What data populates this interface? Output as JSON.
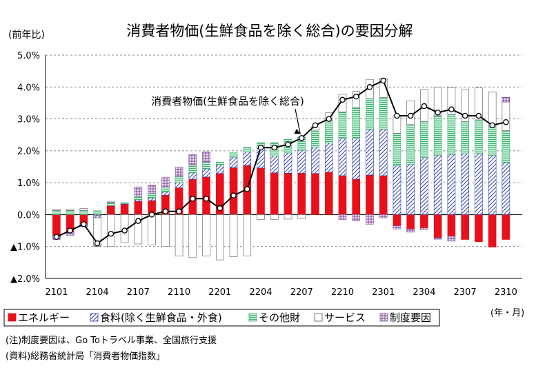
{
  "chart_data": {
    "type": "bar",
    "title": "消費者物価(生鮮食品を除く総合)の要因分解",
    "ylabel": "(前年比)",
    "xlabel": "(年・月)",
    "ylim": [
      -2.0,
      5.0
    ],
    "ytick_labels": [
      "5.0%",
      "4.0%",
      "3.0%",
      "2.0%",
      "1.0%",
      "0.0%",
      "▲1.0%",
      "▲2.0%"
    ],
    "ytick_values": [
      5.0,
      4.0,
      3.0,
      2.0,
      1.0,
      0.0,
      -1.0,
      -2.0
    ],
    "grid": true,
    "stacked": true,
    "categories": [
      "2101",
      "2102",
      "2103",
      "2104",
      "2105",
      "2106",
      "2107",
      "2108",
      "2109",
      "2110",
      "2111",
      "2112",
      "2201",
      "2202",
      "2203",
      "2204",
      "2205",
      "2206",
      "2207",
      "2208",
      "2209",
      "2210",
      "2211",
      "2212",
      "2301",
      "2302",
      "2303",
      "2304",
      "2305",
      "2306",
      "2307",
      "2308",
      "2309",
      "2310"
    ],
    "xtick_labels": [
      "2101",
      "2104",
      "2107",
      "2110",
      "2201",
      "2204",
      "2207",
      "2210",
      "2301",
      "2304",
      "2307",
      "2310"
    ],
    "series": [
      {
        "name": "エネルギー",
        "color": "#e8101a",
        "values": [
          -0.65,
          -0.55,
          -0.3,
          -0.02,
          0.28,
          0.33,
          0.42,
          0.44,
          0.61,
          0.84,
          1.11,
          1.18,
          1.29,
          1.47,
          1.54,
          1.46,
          1.31,
          1.3,
          1.3,
          1.29,
          1.33,
          1.22,
          1.11,
          1.24,
          1.22,
          -0.35,
          -0.45,
          -0.42,
          -0.72,
          -0.68,
          -0.78,
          -0.85,
          -1.02,
          -0.78
        ]
      },
      {
        "name": "食料(除く生鮮食品・外食)",
        "color": "#2d3bb2",
        "values": [
          -0.05,
          -0.04,
          -0.03,
          -0.08,
          0.0,
          0.02,
          0.05,
          0.08,
          0.1,
          0.15,
          0.2,
          0.25,
          0.26,
          0.33,
          0.42,
          0.64,
          0.53,
          0.63,
          0.72,
          0.82,
          0.91,
          1.16,
          1.27,
          1.43,
          1.46,
          1.53,
          1.58,
          1.79,
          1.86,
          1.89,
          1.91,
          1.92,
          1.86,
          1.63
        ]
      },
      {
        "name": "その他財",
        "color": "#7bd5a3",
        "values": [
          0.13,
          0.13,
          0.13,
          0.12,
          0.1,
          0.03,
          0.1,
          0.15,
          0.15,
          0.2,
          0.25,
          0.22,
          0.1,
          0.14,
          0.15,
          0.16,
          0.42,
          0.43,
          0.41,
          0.54,
          0.7,
          0.84,
          0.98,
          0.97,
          0.99,
          1.02,
          1.24,
          1.13,
          1.24,
          1.25,
          1.01,
          1.05,
          0.94,
          1.0
        ]
      },
      {
        "name": "サービス",
        "color": "#ffffff",
        "values": [
          0.03,
          0.03,
          0.06,
          -0.85,
          -1.0,
          -0.88,
          -0.92,
          -0.95,
          -1.0,
          -1.3,
          -1.35,
          -1.3,
          -1.42,
          -1.32,
          -1.3,
          -0.15,
          -0.15,
          -0.14,
          -0.12,
          0.1,
          0.25,
          0.55,
          0.5,
          0.6,
          0.6,
          0.55,
          0.75,
          1.0,
          0.9,
          0.85,
          1.0,
          1.0,
          1.05,
          0.9
        ]
      },
      {
        "name": "制度要因",
        "color": "#d9c2e6",
        "values": [
          -0.08,
          -0.06,
          -0.05,
          -0.04,
          0.02,
          0.0,
          0.3,
          0.25,
          0.3,
          0.3,
          0.32,
          0.32,
          0.0,
          0.0,
          0.0,
          0.0,
          0.0,
          0.0,
          0.0,
          0.0,
          0.0,
          -0.15,
          -0.2,
          -0.3,
          -0.1,
          -0.1,
          -0.1,
          -0.05,
          -0.05,
          -0.15,
          0.0,
          0.0,
          0.0,
          0.15
        ]
      }
    ],
    "line": {
      "name": "消費者物価(生鮮食品を除く総合)",
      "color": "#000000",
      "values": [
        -0.7,
        -0.5,
        -0.3,
        -0.9,
        -0.6,
        -0.5,
        -0.2,
        0.0,
        0.1,
        0.1,
        0.5,
        0.5,
        0.2,
        0.6,
        0.8,
        2.1,
        2.1,
        2.2,
        2.4,
        2.8,
        3.0,
        3.6,
        3.7,
        4.0,
        4.2,
        3.1,
        3.1,
        3.4,
        3.2,
        3.3,
        3.1,
        3.1,
        2.8,
        2.9
      ]
    },
    "annotation": "消費者物価(生鮮食品を除く総合)",
    "legend_position": "bottom"
  },
  "notes": {
    "note1": "(注)制度要因は、Go Toトラベル事業、全国旅行支援",
    "note2": "(資料)総務省統計局「消費者物価指数」"
  }
}
